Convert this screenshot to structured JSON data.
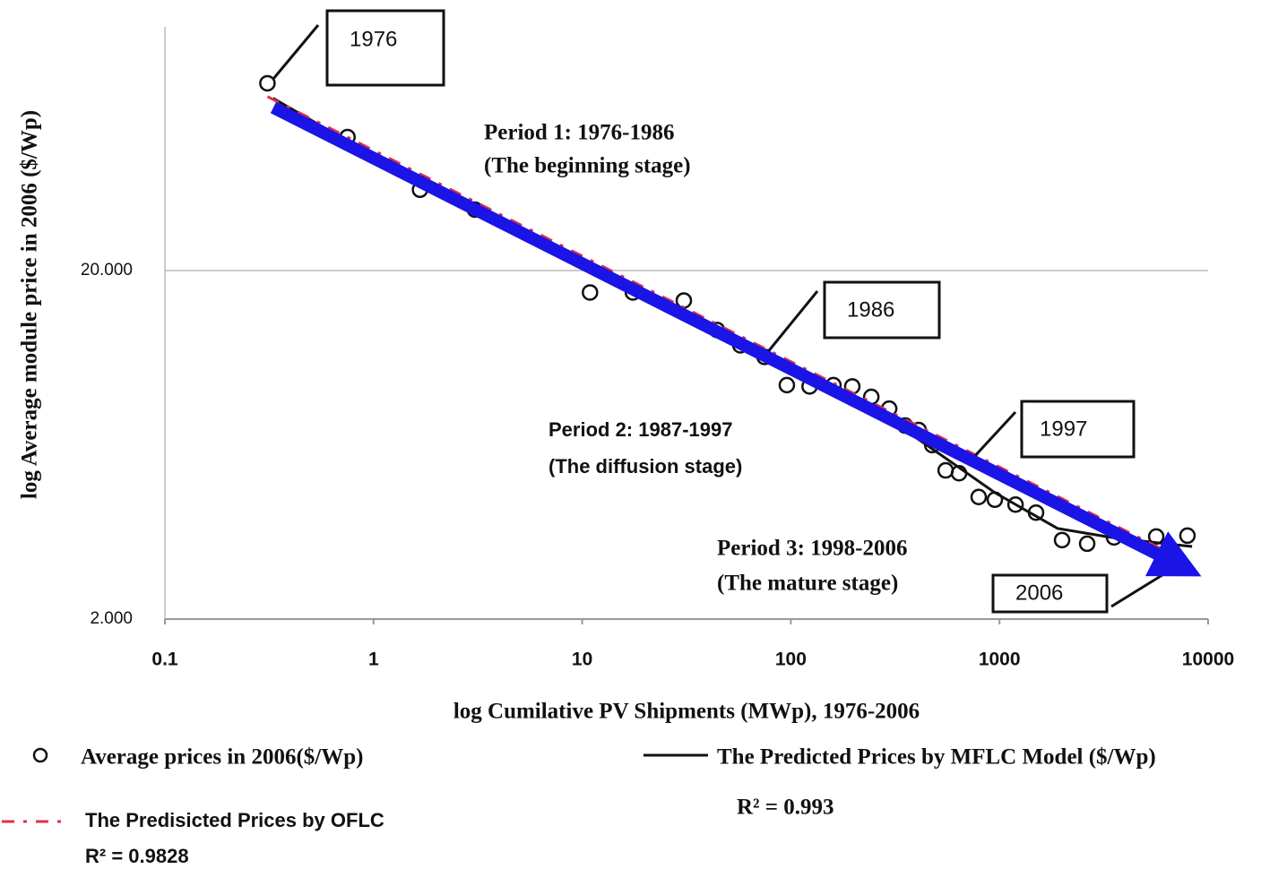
{
  "chart_data": {
    "type": "scatter",
    "xlabel": "log Cumilative PV  Shipments (MWp), 1976-2006",
    "ylabel": "log Average module  price  in 2006 ($/Wp)",
    "xscale": "log",
    "yscale": "log",
    "xlim": [
      0.1,
      10000
    ],
    "xticks": [
      0.1,
      1,
      10,
      100,
      1000,
      10000
    ],
    "ylim": [
      2,
      100
    ],
    "yticks": [
      {
        "value": 2,
        "label": "2.000"
      },
      {
        "value": 20,
        "label": "20.000"
      }
    ],
    "grid": true,
    "series": [
      {
        "name": "Average prices in 2006($/Wp)",
        "color": "#111111",
        "marker": "open-circle",
        "x": [
          0.31,
          0.75,
          1.67,
          3.06,
          10.9,
          17.5,
          30.7,
          44.3,
          57.3,
          74.8,
          95.7,
          123,
          160,
          197,
          243,
          296,
          353,
          410,
          476,
          552,
          640,
          795,
          950,
          1194,
          1497,
          1995,
          2632,
          3540,
          5640,
          7960
        ],
        "values": [
          68.9,
          48.3,
          34.1,
          29.9,
          17.3,
          17.3,
          16.4,
          13.5,
          12.2,
          11.3,
          9.38,
          9.3,
          9.38,
          9.3,
          8.68,
          8.03,
          7.18,
          6.97,
          6.31,
          5.34,
          5.24,
          4.48,
          4.4,
          4.26,
          4.04,
          3.37,
          3.29,
          3.43,
          3.45,
          3.47
        ]
      },
      {
        "name": "The Predicted Prices by MFLC Model ($/Wp)",
        "color": "#111111",
        "line": "solid",
        "x": [
          0.33,
          1.69,
          6.12,
          16.4,
          80.2,
          353,
          580,
          950,
          1897,
          3436,
          6220,
          8380
        ],
        "values": [
          62.4,
          35.5,
          23.5,
          18.0,
          11.5,
          6.97,
          5.67,
          4.61,
          3.64,
          3.43,
          3.29,
          3.23
        ]
      },
      {
        "name": "The Predisicted Prices by OFLC",
        "color": "#e0304a",
        "line": "dashed",
        "x": [
          0.31,
          51.4,
          8380
        ],
        "values": [
          63.1,
          13.4,
          2.87
        ]
      }
    ],
    "annotations": [
      "1976",
      "1986",
      "1997",
      "2006",
      "Period 1: 1976-1986",
      "(The beginning stage)",
      "Period 2: 1987-1997",
      "(The diffusion stage)",
      "Period 3: 1998-2006",
      "(The mature stage)",
      "R² = 0.993",
      "R² = 0.9828"
    ]
  }
}
